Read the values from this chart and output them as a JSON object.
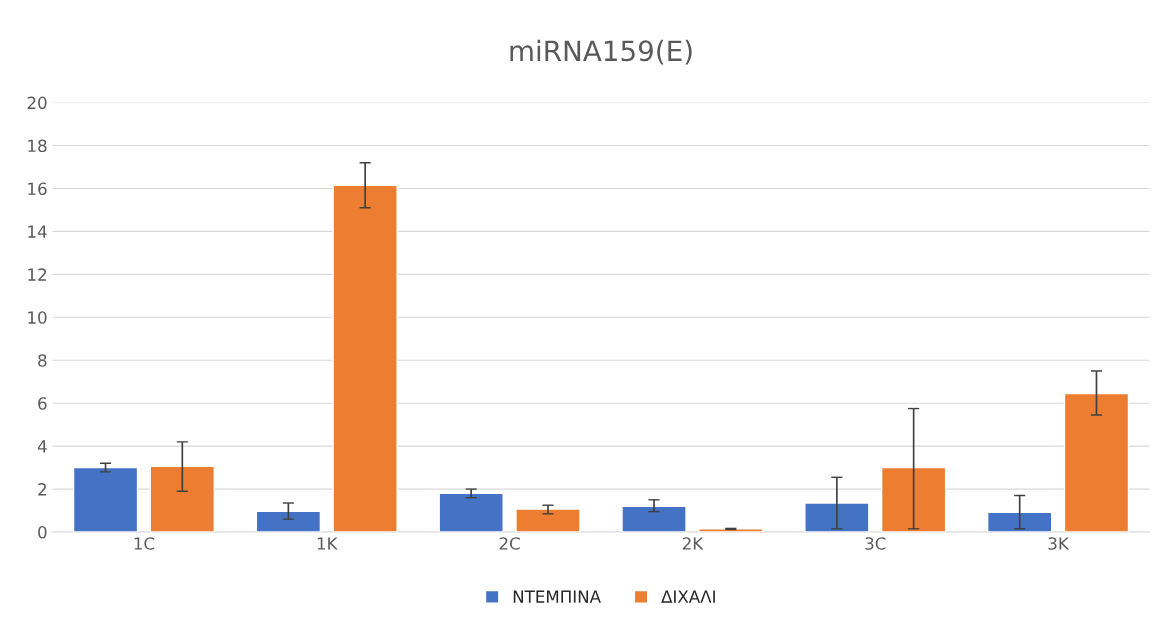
{
  "chart_data": {
    "type": "bar",
    "title": "miRNA159(E)",
    "categories": [
      "1C",
      "1K",
      "2C",
      "2K",
      "3C",
      "3K"
    ],
    "series": [
      {
        "name": "ΝΤΕΜΠΙΝΑ",
        "color": "#4472c4",
        "values": [
          3.0,
          0.97,
          1.8,
          1.2,
          1.35,
          0.92
        ],
        "errors": [
          [
            2.8,
            3.2
          ],
          [
            0.6,
            1.35
          ],
          [
            1.6,
            2.0
          ],
          [
            0.95,
            1.5
          ],
          [
            0.15,
            2.55
          ],
          [
            0.15,
            1.7
          ]
        ]
      },
      {
        "name": "ΔΙΧΑΛΙ",
        "color": "#ed7d31",
        "values": [
          3.06,
          16.15,
          1.07,
          0.15,
          3.0,
          6.45
        ],
        "errors": [
          [
            1.9,
            4.2
          ],
          [
            15.1,
            17.2
          ],
          [
            0.85,
            1.25
          ],
          [
            0.12,
            0.17
          ],
          [
            0.15,
            5.75
          ],
          [
            5.45,
            7.5
          ]
        ]
      }
    ],
    "ylim": [
      0,
      20
    ],
    "yticks": [
      0,
      2,
      4,
      6,
      8,
      10,
      12,
      14,
      16,
      18,
      20
    ],
    "grid": "y",
    "legend": "bottom"
  }
}
